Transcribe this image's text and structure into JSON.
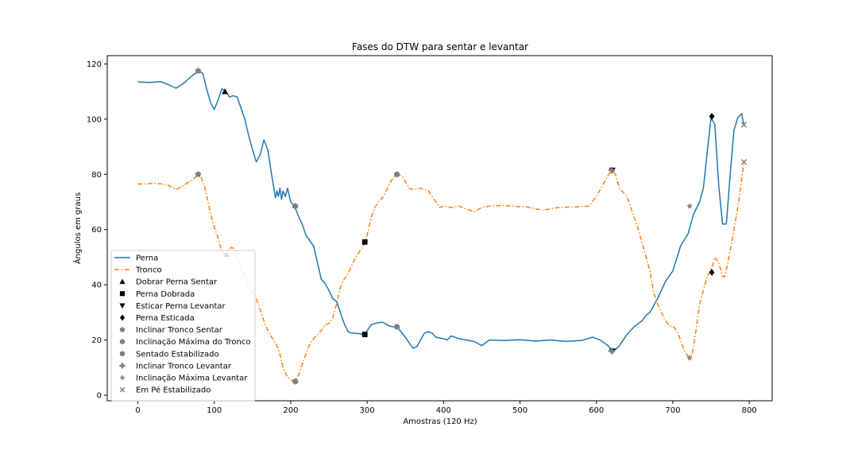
{
  "chart_data": {
    "type": "line",
    "title": "Fases do DTW para sentar e levantar",
    "xlabel": "Amostras (120 Hz)",
    "ylabel": "Ângulos em graus",
    "xlim": [
      -40,
      830
    ],
    "ylim": [
      -2,
      123
    ],
    "xticks": [
      0,
      100,
      200,
      300,
      400,
      500,
      600,
      700,
      800
    ],
    "yticks": [
      0,
      20,
      40,
      60,
      80,
      100,
      120
    ],
    "grid": false,
    "legend_position": "lower-left",
    "series": [
      {
        "name": "Perna",
        "color": "#1f77b4",
        "style": "solid",
        "points": [
          [
            0,
            113.5
          ],
          [
            15,
            113.3
          ],
          [
            30,
            113.6
          ],
          [
            40,
            112.5
          ],
          [
            50,
            111.2
          ],
          [
            60,
            113
          ],
          [
            70,
            115.5
          ],
          [
            80,
            117.5
          ],
          [
            85,
            116.5
          ],
          [
            90,
            111
          ],
          [
            95,
            106
          ],
          [
            100,
            103.5
          ],
          [
            105,
            107
          ],
          [
            110,
            111
          ],
          [
            115,
            110
          ],
          [
            120,
            108
          ],
          [
            125,
            108.5
          ],
          [
            130,
            108
          ],
          [
            135,
            104
          ],
          [
            140,
            100
          ],
          [
            145,
            94
          ],
          [
            150,
            89
          ],
          [
            155,
            84.5
          ],
          [
            160,
            87
          ],
          [
            165,
            92.5
          ],
          [
            170,
            89
          ],
          [
            175,
            80
          ],
          [
            180,
            71.5
          ],
          [
            182,
            74
          ],
          [
            184,
            72
          ],
          [
            186,
            75
          ],
          [
            188,
            71
          ],
          [
            190,
            74
          ],
          [
            193,
            72
          ],
          [
            196,
            75
          ],
          [
            200,
            70
          ],
          [
            205,
            68.5
          ],
          [
            210,
            65
          ],
          [
            215,
            62
          ],
          [
            220,
            58
          ],
          [
            225,
            56
          ],
          [
            230,
            54
          ],
          [
            235,
            48
          ],
          [
            240,
            42
          ],
          [
            245,
            40.5
          ],
          [
            250,
            38
          ],
          [
            255,
            35
          ],
          [
            260,
            34
          ],
          [
            265,
            30
          ],
          [
            270,
            26
          ],
          [
            275,
            23
          ],
          [
            280,
            22.5
          ],
          [
            290,
            22.3
          ],
          [
            297,
            22
          ],
          [
            305,
            25.5
          ],
          [
            310,
            26
          ],
          [
            320,
            26.5
          ],
          [
            330,
            25
          ],
          [
            340,
            24.5
          ],
          [
            350,
            21
          ],
          [
            355,
            19
          ],
          [
            360,
            17
          ],
          [
            365,
            17.5
          ],
          [
            370,
            20
          ],
          [
            375,
            22.5
          ],
          [
            380,
            23
          ],
          [
            385,
            22.5
          ],
          [
            390,
            21
          ],
          [
            400,
            20.5
          ],
          [
            405,
            20
          ],
          [
            410,
            21.5
          ],
          [
            420,
            20.5
          ],
          [
            430,
            20
          ],
          [
            440,
            19.5
          ],
          [
            450,
            18
          ],
          [
            460,
            20
          ],
          [
            480,
            19.8
          ],
          [
            500,
            20.1
          ],
          [
            520,
            19.6
          ],
          [
            540,
            20
          ],
          [
            560,
            19.5
          ],
          [
            580,
            19.8
          ],
          [
            595,
            21
          ],
          [
            605,
            20
          ],
          [
            615,
            18
          ],
          [
            621,
            16
          ],
          [
            625,
            16.5
          ],
          [
            630,
            18
          ],
          [
            640,
            22
          ],
          [
            650,
            25
          ],
          [
            660,
            27
          ],
          [
            665,
            29
          ],
          [
            670,
            30
          ],
          [
            680,
            35
          ],
          [
            690,
            41
          ],
          [
            700,
            45
          ],
          [
            710,
            54
          ],
          [
            720,
            58.5
          ],
          [
            727,
            65.5
          ],
          [
            735,
            70
          ],
          [
            740,
            75
          ],
          [
            745,
            88
          ],
          [
            750,
            100.5
          ],
          [
            755,
            98
          ],
          [
            760,
            76
          ],
          [
            765,
            62
          ],
          [
            770,
            62
          ],
          [
            775,
            80
          ],
          [
            780,
            96
          ],
          [
            785,
            100.5
          ],
          [
            790,
            102
          ],
          [
            793,
            98
          ]
        ]
      },
      {
        "name": "Tronco",
        "color": "#ff7f0e",
        "style": "dashdot",
        "points": [
          [
            0,
            76.5
          ],
          [
            10,
            76.5
          ],
          [
            20,
            76.8
          ],
          [
            30,
            76.6
          ],
          [
            40,
            76
          ],
          [
            50,
            74.5
          ],
          [
            60,
            76
          ],
          [
            70,
            77.8
          ],
          [
            78,
            79.5
          ],
          [
            82,
            79.5
          ],
          [
            88,
            75
          ],
          [
            95,
            66
          ],
          [
            100,
            61
          ],
          [
            105,
            57
          ],
          [
            110,
            52
          ],
          [
            115,
            51
          ],
          [
            118,
            52.5
          ],
          [
            122,
            53.5
          ],
          [
            125,
            53.3
          ],
          [
            130,
            50
          ],
          [
            135,
            46
          ],
          [
            140,
            43
          ],
          [
            145,
            40
          ],
          [
            150,
            37
          ],
          [
            155,
            35
          ],
          [
            160,
            31
          ],
          [
            165,
            27
          ],
          [
            170,
            23.5
          ],
          [
            175,
            21
          ],
          [
            180,
            19
          ],
          [
            185,
            16
          ],
          [
            190,
            10
          ],
          [
            195,
            7
          ],
          [
            200,
            5.5
          ],
          [
            205,
            5
          ],
          [
            210,
            7
          ],
          [
            215,
            11
          ],
          [
            220,
            15
          ],
          [
            225,
            18.5
          ],
          [
            230,
            20.5
          ],
          [
            235,
            22
          ],
          [
            240,
            23.5
          ],
          [
            245,
            25.5
          ],
          [
            250,
            26
          ],
          [
            255,
            28
          ],
          [
            260,
            33
          ],
          [
            265,
            39
          ],
          [
            270,
            42
          ],
          [
            275,
            44
          ],
          [
            280,
            47
          ],
          [
            285,
            50
          ],
          [
            290,
            52
          ],
          [
            297,
            55
          ],
          [
            300,
            58
          ],
          [
            305,
            64
          ],
          [
            310,
            68
          ],
          [
            315,
            70
          ],
          [
            320,
            71.5
          ],
          [
            325,
            74
          ],
          [
            330,
            77
          ],
          [
            335,
            79
          ],
          [
            340,
            80
          ],
          [
            345,
            79.5
          ],
          [
            350,
            77.5
          ],
          [
            355,
            75
          ],
          [
            360,
            74.5
          ],
          [
            370,
            75
          ],
          [
            380,
            74
          ],
          [
            385,
            72
          ],
          [
            390,
            70
          ],
          [
            395,
            68
          ],
          [
            400,
            68.5
          ],
          [
            410,
            68
          ],
          [
            420,
            68.5
          ],
          [
            430,
            67.5
          ],
          [
            440,
            66.5
          ],
          [
            450,
            68
          ],
          [
            460,
            68.5
          ],
          [
            480,
            68.7
          ],
          [
            500,
            68.3
          ],
          [
            510,
            68.2
          ],
          [
            520,
            67.5
          ],
          [
            530,
            67
          ],
          [
            540,
            67.5
          ],
          [
            550,
            68
          ],
          [
            570,
            68.2
          ],
          [
            590,
            68.5
          ],
          [
            600,
            72
          ],
          [
            610,
            77
          ],
          [
            616,
            80
          ],
          [
            620,
            81.5
          ],
          [
            625,
            80
          ],
          [
            630,
            75
          ],
          [
            640,
            72
          ],
          [
            645,
            68
          ],
          [
            650,
            64
          ],
          [
            655,
            60
          ],
          [
            660,
            55
          ],
          [
            665,
            50
          ],
          [
            670,
            45
          ],
          [
            675,
            37
          ],
          [
            680,
            33
          ],
          [
            685,
            30
          ],
          [
            690,
            27
          ],
          [
            695,
            25.5
          ],
          [
            700,
            25
          ],
          [
            705,
            23.5
          ],
          [
            710,
            20
          ],
          [
            715,
            16
          ],
          [
            720,
            14
          ],
          [
            725,
            14.5
          ],
          [
            730,
            23
          ],
          [
            735,
            33
          ],
          [
            740,
            38
          ],
          [
            745,
            43
          ],
          [
            748,
            44.5
          ],
          [
            752,
            47
          ],
          [
            755,
            50
          ],
          [
            760,
            48
          ],
          [
            765,
            43
          ],
          [
            768,
            43
          ],
          [
            772,
            48
          ],
          [
            778,
            57
          ],
          [
            785,
            68
          ],
          [
            790,
            78
          ],
          [
            793,
            84.5
          ]
        ]
      }
    ],
    "markers": [
      {
        "name": "Dobrar Perna Sentar",
        "shape": "triangle-up",
        "color": "#000000",
        "points": [
          [
            114,
            110
          ],
          [
            116,
            51
          ]
        ]
      },
      {
        "name": "Perna Dobrada",
        "shape": "square",
        "color": "#000000",
        "points": [
          [
            297,
            22
          ],
          [
            297,
            55.5
          ]
        ]
      },
      {
        "name": "Esticar Perna Levantar",
        "shape": "triangle-down",
        "color": "#000000",
        "points": [
          [
            621,
            16
          ],
          [
            621,
            81.5
          ]
        ]
      },
      {
        "name": "Perna Esticada",
        "shape": "diamond",
        "color": "#000000",
        "points": [
          [
            751,
            101
          ],
          [
            751,
            44.5
          ]
        ]
      },
      {
        "name": "Inclinar Tronco Sentar",
        "shape": "pentagon",
        "color": "#808080",
        "points": [
          [
            79,
            117.5
          ],
          [
            79,
            80
          ]
        ]
      },
      {
        "name": "Inclinação Máxima do Tronco",
        "shape": "hexagon",
        "color": "#808080",
        "points": [
          [
            206,
            68.5
          ],
          [
            206,
            5
          ]
        ]
      },
      {
        "name": "Sentado Estabilizado",
        "shape": "circle",
        "color": "#808080",
        "points": [
          [
            339,
            24.8
          ],
          [
            339,
            80
          ]
        ]
      },
      {
        "name": "Inclinar Tronco Levantar",
        "shape": "plus",
        "color": "#808080",
        "points": [
          [
            620,
            16
          ],
          [
            620,
            81.5
          ]
        ]
      },
      {
        "name": "Inclinação Máxima Levantar",
        "shape": "star",
        "color": "#808080",
        "points": [
          [
            722,
            68.5
          ],
          [
            722,
            13.5
          ]
        ]
      },
      {
        "name": "Em Pé Estabilizado",
        "shape": "x",
        "color": "#808080",
        "points": [
          [
            793,
            98
          ],
          [
            793,
            84.5
          ]
        ]
      }
    ]
  }
}
